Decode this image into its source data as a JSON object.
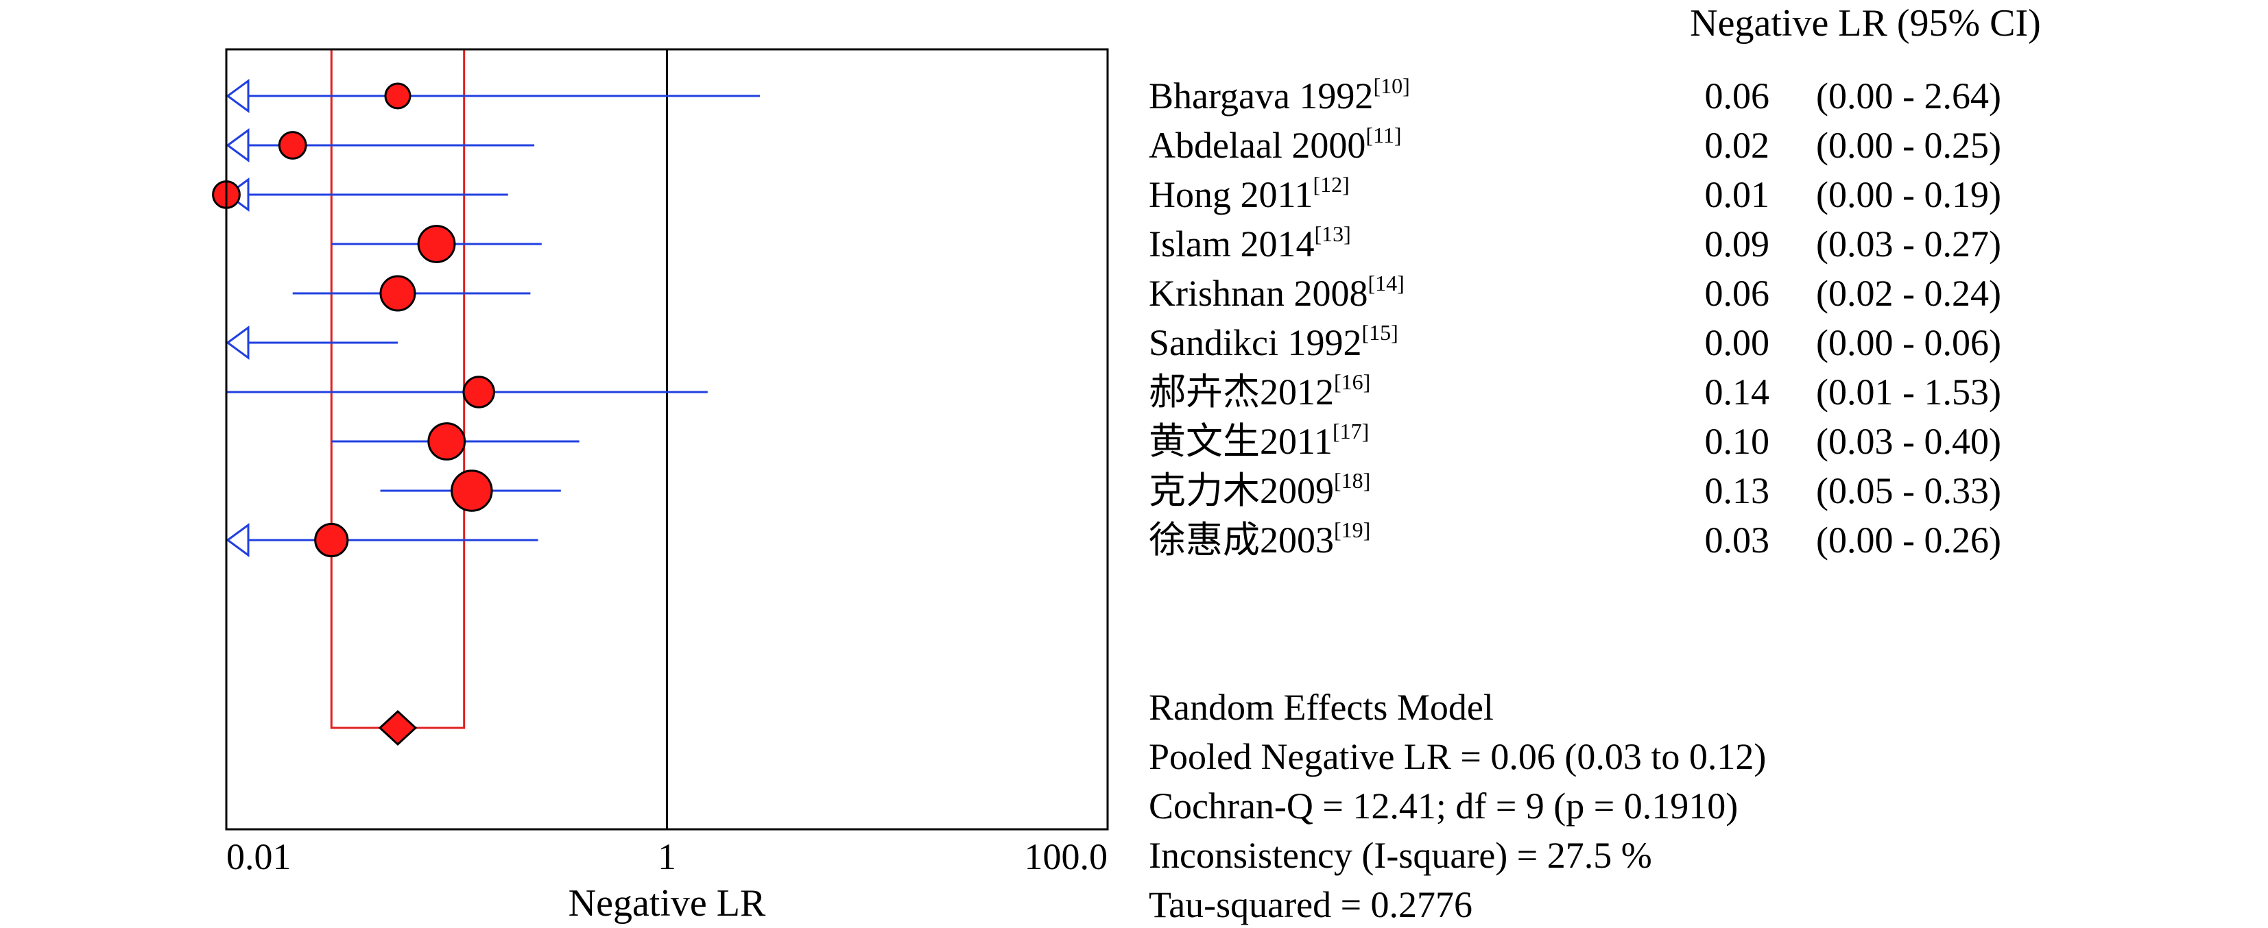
{
  "chart_data": {
    "type": "forest",
    "xscale": "log",
    "xlim": [
      0.01,
      100.0
    ],
    "xlabel": "Negative LR",
    "x_ticks": [
      {
        "value": 0.01,
        "label": "0.01"
      },
      {
        "value": 1,
        "label": "1"
      },
      {
        "value": 100,
        "label": "100.0"
      }
    ],
    "column_header": "Negative LR (95% CI)",
    "colors": {
      "frame": "#000000",
      "ci_line": "#2040e0",
      "marker_fill": "#ff1a1a",
      "pooled": "#e02020"
    },
    "studies": [
      {
        "name": "Bhargava 1992",
        "ref": "[10]",
        "estimate": 0.06,
        "lower": 0.0,
        "upper": 2.64,
        "est_label": "0.06",
        "ci_label": "(0.00 - 2.64)",
        "weight": 1.0
      },
      {
        "name": "Abdelaal 2000",
        "ref": "[11]",
        "estimate": 0.02,
        "lower": 0.0,
        "upper": 0.25,
        "est_label": "0.02",
        "ci_label": "(0.00 - 0.25)",
        "weight": 1.1
      },
      {
        "name": "Hong 2011",
        "ref": "[12]",
        "estimate": 0.01,
        "lower": 0.0,
        "upper": 0.19,
        "est_label": "0.01",
        "ci_label": "(0.00 - 0.19)",
        "weight": 1.1
      },
      {
        "name": "Islam 2014",
        "ref": "[13]",
        "estimate": 0.09,
        "lower": 0.03,
        "upper": 0.27,
        "est_label": "0.09",
        "ci_label": "(0.03 - 0.27)",
        "weight": 1.6
      },
      {
        "name": "Krishnan 2008",
        "ref": "[14]",
        "estimate": 0.06,
        "lower": 0.02,
        "upper": 0.24,
        "est_label": "0.06",
        "ci_label": "(0.02 - 0.24)",
        "weight": 1.5
      },
      {
        "name": "Sandikci 1992",
        "ref": "[15]",
        "estimate": 0.0,
        "lower": 0.0,
        "upper": 0.06,
        "est_label": "0.00",
        "ci_label": "(0.00 - 0.06)",
        "weight": 0
      },
      {
        "name": "郝卉杰2012",
        "ref": "[16]",
        "estimate": 0.14,
        "lower": 0.01,
        "upper": 1.53,
        "est_label": "0.14",
        "ci_label": "(0.01 - 1.53)",
        "weight": 1.3
      },
      {
        "name": "黄文生2011",
        "ref": "[17]",
        "estimate": 0.1,
        "lower": 0.03,
        "upper": 0.4,
        "est_label": "0.10",
        "ci_label": "(0.03 - 0.40)",
        "weight": 1.6
      },
      {
        "name": "克力木2009",
        "ref": "[18]",
        "estimate": 0.13,
        "lower": 0.05,
        "upper": 0.33,
        "est_label": "0.13",
        "ci_label": "(0.05 - 0.33)",
        "weight": 1.8
      },
      {
        "name": "徐惠成2003",
        "ref": "[19]",
        "estimate": 0.03,
        "lower": 0.0,
        "upper": 0.26,
        "est_label": "0.03",
        "ci_label": "(0.00 - 0.26)",
        "weight": 1.4
      }
    ],
    "pooled": {
      "estimate": 0.06,
      "lower": 0.03,
      "upper": 0.12
    },
    "summary_lines": [
      "Random Effects Model",
      "Pooled Negative LR = 0.06 (0.03 to 0.12)",
      "Cochran-Q = 12.41; df =  9 (p = 0.1910)",
      "Inconsistency (I-square) = 27.5 %",
      "Tau-squared = 0.2776"
    ]
  }
}
